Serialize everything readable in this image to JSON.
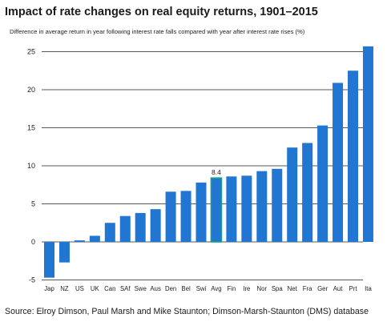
{
  "chart_data": {
    "type": "bar",
    "title": "Impact of rate changes on real equity returns, 1901–2015",
    "subtitle": "Difference in average return in year following interest rate falls compared with year after interest rate rises (%)",
    "source": "Source: Elroy Dimson, Paul Marsh and Mike Staunton; Dimson-Marsh-Staunton (DMS) database",
    "categories": [
      "Jap",
      "NZ",
      "US",
      "UK",
      "Can",
      "SAf",
      "Swe",
      "Aus",
      "Den",
      "Bel",
      "Swi",
      "Avg",
      "Fin",
      "Ire",
      "Nor",
      "Spa",
      "Net",
      "Fra",
      "Ger",
      "Aut",
      "Prt",
      "Ita"
    ],
    "values": [
      -4.7,
      -2.7,
      0.2,
      0.8,
      2.5,
      3.4,
      3.8,
      4.3,
      6.6,
      6.7,
      7.8,
      8.4,
      8.6,
      8.7,
      9.3,
      9.6,
      12.4,
      13.0,
      15.3,
      20.9,
      22.5,
      25.7
    ],
    "highlight_category": "Avg",
    "data_labels": [
      {
        "category": "Avg",
        "text": "8.4"
      }
    ],
    "yticks": [
      "-5",
      "0",
      "5",
      "10",
      "15",
      "20",
      "25"
    ],
    "ylim": [
      -5,
      27
    ],
    "grid": true,
    "colors": {
      "bar": "#2176d2",
      "highlight": "#1b9e86",
      "grid": "#222222"
    }
  }
}
